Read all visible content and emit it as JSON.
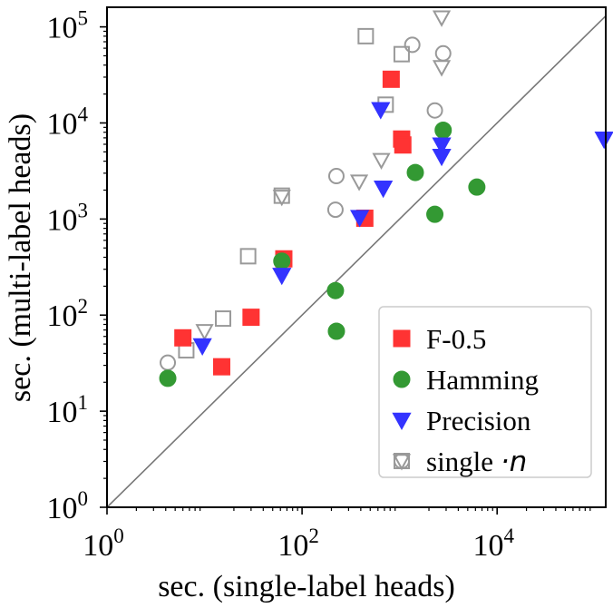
{
  "chart_data": {
    "type": "scatter",
    "xlabel": "sec. (single-label heads)",
    "ylabel": "sec. (multi-label heads)",
    "xscale": "log",
    "yscale": "log",
    "xlim": [
      1,
      130000
    ],
    "ylim": [
      1,
      160000
    ],
    "x_ticks": [
      {
        "value": 1,
        "base": "10",
        "exp": "0"
      },
      {
        "value": 100,
        "base": "10",
        "exp": "2"
      },
      {
        "value": 10000,
        "base": "10",
        "exp": "4"
      }
    ],
    "y_ticks": [
      {
        "value": 1,
        "base": "10",
        "exp": "0"
      },
      {
        "value": 10,
        "base": "10",
        "exp": "1"
      },
      {
        "value": 100,
        "base": "10",
        "exp": "2"
      },
      {
        "value": 1000,
        "base": "10",
        "exp": "3"
      },
      {
        "value": 10000,
        "base": "10",
        "exp": "4"
      },
      {
        "value": 100000,
        "base": "10",
        "exp": "5"
      }
    ],
    "diagonal": true,
    "grid": false,
    "legend_position": "lower-right",
    "series": [
      {
        "name": "F-0.5",
        "marker": "square",
        "color": "#ff3333",
        "filled": true,
        "points": [
          [
            6,
            58
          ],
          [
            15,
            29
          ],
          [
            30,
            95
          ],
          [
            65,
            385
          ],
          [
            440,
            1020
          ],
          [
            820,
            28500
          ],
          [
            1050,
            6800
          ],
          [
            1080,
            5900
          ]
        ]
      },
      {
        "name": "Hamming",
        "marker": "circle",
        "color": "#339933",
        "filled": true,
        "points": [
          [
            4.2,
            22
          ],
          [
            62,
            365
          ],
          [
            220,
            180
          ],
          [
            225,
            68
          ],
          [
            1450,
            3050
          ],
          [
            2300,
            1120
          ],
          [
            2800,
            8400
          ],
          [
            6200,
            2150
          ]
        ]
      },
      {
        "name": "Precision",
        "marker": "triangle-down",
        "color": "#3333ff",
        "filled": true,
        "points": [
          [
            9.5,
            48
          ],
          [
            62,
            260
          ],
          [
            390,
            1040
          ],
          [
            640,
            13800
          ],
          [
            680,
            2100
          ],
          [
            2700,
            5900
          ],
          [
            2700,
            4500
          ],
          [
            125000,
            6800
          ]
        ]
      },
      {
        "name": "single ·n",
        "name_text": "single ",
        "name_math": "·n",
        "marker": "mixed",
        "color": "#999999",
        "filled": false,
        "points": [
          {
            "x": 4.2,
            "y": 32,
            "m": "circle"
          },
          {
            "x": 6.5,
            "y": 43,
            "m": "square"
          },
          {
            "x": 10,
            "y": 68,
            "m": "triangle-down"
          },
          {
            "x": 15.5,
            "y": 92,
            "m": "square"
          },
          {
            "x": 28,
            "y": 410,
            "m": "square"
          },
          {
            "x": 62,
            "y": 1750,
            "m": "square"
          },
          {
            "x": 62,
            "y": 1700,
            "m": "triangle-down"
          },
          {
            "x": 220,
            "y": 1250,
            "m": "circle"
          },
          {
            "x": 225,
            "y": 2800,
            "m": "circle"
          },
          {
            "x": 385,
            "y": 2450,
            "m": "triangle-down"
          },
          {
            "x": 450,
            "y": 80000,
            "m": "square"
          },
          {
            "x": 650,
            "y": 4100,
            "m": "triangle-down"
          },
          {
            "x": 720,
            "y": 15500,
            "m": "square"
          },
          {
            "x": 1050,
            "y": 52000,
            "m": "square"
          },
          {
            "x": 1350,
            "y": 65000,
            "m": "circle"
          },
          {
            "x": 2300,
            "y": 13500,
            "m": "circle"
          },
          {
            "x": 2800,
            "y": 53000,
            "m": "circle"
          },
          {
            "x": 2700,
            "y": 38000,
            "m": "triangle-down"
          },
          {
            "x": 2700,
            "y": 125000,
            "m": "triangle-down"
          }
        ]
      }
    ]
  }
}
